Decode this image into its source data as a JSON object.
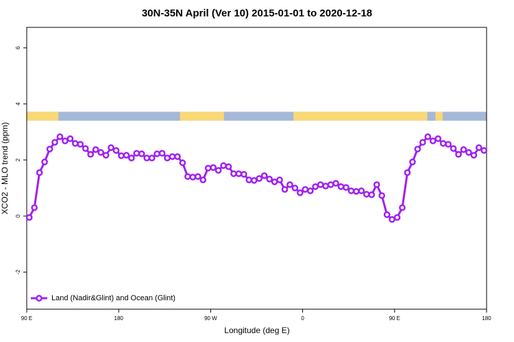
{
  "chart_data": {
    "type": "line",
    "title": "30N-35N April (Ver 10)   2015-01-01 to 2020-12-18",
    "x_label": "Longitude (deg E)",
    "y_label": "XCO2 - MLO trend (ppm)",
    "xlim": [
      90,
      540
    ],
    "ylim": [
      -3.32,
      6.73
    ],
    "xticks": [
      {
        "value": 90,
        "label": "90 E"
      },
      180,
      {
        "value": 270,
        "label": "90 W"
      },
      {
        "value": 360,
        "label": "0"
      },
      {
        "value": 450,
        "label": "90 E"
      },
      {
        "value": 540,
        "label": "180"
      }
    ],
    "yticks": [
      -2,
      0,
      2,
      4,
      6
    ],
    "legend": "bottom-left",
    "x": [
      92.5,
      97.5,
      102.5,
      107.5,
      112.5,
      117.5,
      122.5,
      127.5,
      132.5,
      137.5,
      142.5,
      147.5,
      152.5,
      157.5,
      162.5,
      167.5,
      172.5,
      177.5,
      182.5,
      187.5,
      192.5,
      197.5,
      202.5,
      207.5,
      212.5,
      217.5,
      222.5,
      227.5,
      232.5,
      237.5,
      242.5,
      247.5,
      252.5,
      257.5,
      262.5,
      267.5,
      272.5,
      277.5,
      282.5,
      287.5,
      292.5,
      297.5,
      302.5,
      307.5,
      312.5,
      317.5,
      322.5,
      327.5,
      332.5,
      337.5,
      342.5,
      347.5,
      352.5,
      357.5,
      362.5,
      367.5,
      372.5,
      377.5,
      382.5,
      387.5,
      392.5,
      397.5,
      402.5,
      407.5,
      412.5,
      417.5,
      422.5,
      427.5,
      432.5,
      437.5,
      442.5,
      447.5,
      452.5,
      457.5,
      462.5,
      467.5,
      472.5,
      477.5,
      482.5,
      487.5,
      492.5,
      497.5,
      502.5,
      507.5,
      512.5,
      517.5,
      522.5,
      527.5,
      532.5,
      537.5
    ],
    "series": [
      {
        "name": "Land (Nadir&Glint) and Ocean (Glint)",
        "color": "#a020f0",
        "values": [
          -0.05,
          0.3,
          1.55,
          1.93,
          2.39,
          2.63,
          2.83,
          2.68,
          2.76,
          2.59,
          2.56,
          2.41,
          2.2,
          2.37,
          2.27,
          2.17,
          2.44,
          2.34,
          2.15,
          2.17,
          2.07,
          2.24,
          2.22,
          2.07,
          2.07,
          2.22,
          2.24,
          2.07,
          2.12,
          2.12,
          1.9,
          1.41,
          1.39,
          1.41,
          1.29,
          1.71,
          1.73,
          1.63,
          1.8,
          1.76,
          1.51,
          1.51,
          1.49,
          1.29,
          1.27,
          1.34,
          1.44,
          1.32,
          1.22,
          1.29,
          0.95,
          1.12,
          1.0,
          0.83,
          0.95,
          0.9,
          1.05,
          1.12,
          1.07,
          1.12,
          1.17,
          1.05,
          1.02,
          0.9,
          0.88,
          0.9,
          0.78,
          0.76,
          1.12,
          0.73,
          0.05,
          -0.12,
          -0.05,
          0.3,
          1.55,
          1.93,
          2.39,
          2.63,
          2.83,
          2.68,
          2.76,
          2.59,
          2.56,
          2.41,
          2.2,
          2.37,
          2.27,
          2.17,
          2.44,
          2.34
        ]
      }
    ],
    "land_band": {
      "y": [
        3.4,
        3.72
      ],
      "ocean_color": "#a5b8d7",
      "land_color": "#f9d877",
      "land": [
        [
          90,
          121
        ],
        [
          240,
          283
        ],
        [
          351,
          482
        ],
        [
          490,
          497
        ]
      ]
    }
  }
}
